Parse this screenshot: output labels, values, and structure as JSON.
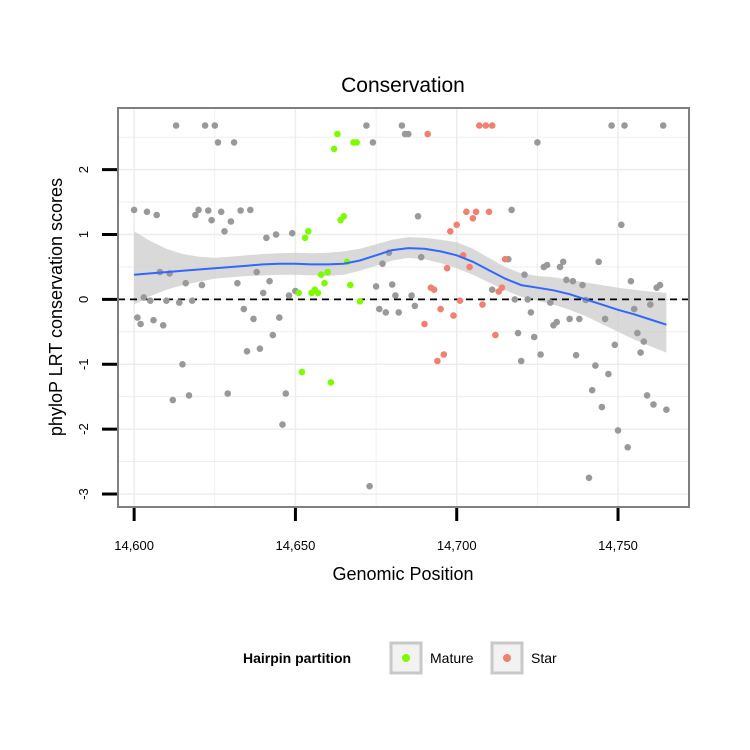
{
  "chart_data": {
    "type": "scatter",
    "title": "Conservation",
    "xlabel": "Genomic Position",
    "ylabel": "phyloP LRT conservation scores",
    "xlim": [
      14595,
      14772
    ],
    "ylim": [
      -3.2,
      2.95
    ],
    "x_ticks": [
      14600,
      14650,
      14700,
      14750
    ],
    "x_tick_labels": [
      "14,600",
      "14,650",
      "14,700",
      "14,750"
    ],
    "y_ticks": [
      -3,
      -2,
      -1,
      0,
      1,
      2
    ],
    "y_tick_labels": [
      "-3",
      "-2",
      "-1",
      "0",
      "1",
      "2"
    ],
    "grid": true,
    "reference_line": {
      "y": 0,
      "style": "dashed"
    },
    "legend": {
      "title": "Hairpin partition",
      "position": "bottom",
      "entries": [
        {
          "label": "Mature",
          "color": "#7cfc00"
        },
        {
          "label": "Star",
          "color": "#f08070"
        }
      ]
    },
    "colors": {
      "other": "#999999",
      "Mature": "#7cfc00",
      "Star": "#f08070",
      "smooth": "#3366ff",
      "band": "#cccccc"
    },
    "series": [
      {
        "name": "Other",
        "x": [
          14600,
          14601,
          14602,
          14603,
          14604,
          14605,
          14606,
          14607,
          14608,
          14609,
          14610,
          14611,
          14612,
          14613,
          14614,
          14615,
          14616,
          14617,
          14618,
          14619,
          14620,
          14621,
          14622,
          14623,
          14624,
          14625,
          14626,
          14627,
          14628,
          14629,
          14630,
          14631,
          14632,
          14633,
          14634,
          14635,
          14636,
          14637,
          14638,
          14639,
          14640,
          14641,
          14642,
          14643,
          14644,
          14645,
          14646,
          14647,
          14648,
          14649,
          14650,
          14672,
          14673,
          14674,
          14675,
          14676,
          14677,
          14678,
          14679,
          14680,
          14681,
          14682,
          14683,
          14684,
          14685,
          14686,
          14687,
          14688,
          14689,
          14711,
          14716,
          14717,
          14718,
          14719,
          14720,
          14721,
          14722,
          14723,
          14724,
          14725,
          14726,
          14727,
          14728,
          14729,
          14730,
          14731,
          14732,
          14733,
          14734,
          14735,
          14736,
          14737,
          14738,
          14739,
          14740,
          14741,
          14742,
          14743,
          14744,
          14745,
          14746,
          14747,
          14748,
          14749,
          14750,
          14751,
          14752,
          14753,
          14754,
          14755,
          14756,
          14757,
          14758,
          14759,
          14760,
          14761,
          14762,
          14763,
          14764,
          14765
        ],
        "y": [
          1.38,
          -0.28,
          -0.38,
          0.03,
          1.35,
          -0.02,
          -0.32,
          1.3,
          0.42,
          -0.4,
          -0.02,
          0.4,
          -1.55,
          2.68,
          -0.05,
          -1.0,
          0.25,
          -1.48,
          -0.02,
          1.3,
          1.38,
          0.22,
          2.68,
          1.37,
          1.22,
          2.68,
          2.42,
          1.35,
          1.05,
          -1.45,
          1.2,
          2.42,
          0.25,
          1.37,
          -0.15,
          -0.8,
          1.38,
          -0.3,
          0.42,
          -0.76,
          0.1,
          0.95,
          0.28,
          -0.55,
          1.0,
          -0.28,
          -1.93,
          -1.45,
          0.06,
          1.02,
          0.13,
          2.68,
          -2.88,
          2.42,
          0.2,
          -0.15,
          0.55,
          -0.2,
          0.72,
          0.23,
          0.06,
          -0.2,
          2.68,
          2.55,
          2.55,
          0.06,
          -0.1,
          1.28,
          0.65,
          0.15,
          0.62,
          1.38,
          0.0,
          -0.52,
          -0.95,
          0.38,
          0.0,
          -0.2,
          -0.58,
          2.42,
          -0.85,
          0.5,
          0.53,
          -0.05,
          -0.4,
          -0.35,
          0.5,
          0.58,
          0.3,
          -0.3,
          0.28,
          -0.86,
          -0.3,
          0.22,
          -0.01,
          -2.75,
          -1.4,
          -1.02,
          0.58,
          -1.66,
          -0.3,
          -1.15,
          2.68,
          -0.7,
          -2.02,
          1.15,
          2.68,
          -2.28,
          0.28,
          -0.15,
          -0.52,
          -0.82,
          -0.65,
          -1.48,
          -0.08,
          -1.62,
          0.18,
          0.22,
          2.68,
          -1.7
        ],
        "color": "#999999"
      },
      {
        "name": "Mature",
        "x": [
          14651,
          14652,
          14653,
          14654,
          14655,
          14656,
          14657,
          14658,
          14659,
          14660,
          14661,
          14662,
          14663,
          14664,
          14665,
          14666,
          14667,
          14668,
          14669,
          14670
        ],
        "y": [
          0.1,
          -1.12,
          0.95,
          1.05,
          0.1,
          0.15,
          0.1,
          0.38,
          0.25,
          0.42,
          -1.28,
          2.32,
          2.55,
          1.22,
          1.28,
          0.58,
          0.22,
          2.42,
          2.42,
          -0.03
        ],
        "color": "#7cfc00"
      },
      {
        "name": "Star",
        "x": [
          14690,
          14691,
          14692,
          14693,
          14694,
          14695,
          14696,
          14697,
          14698,
          14699,
          14700,
          14701,
          14702,
          14703,
          14704,
          14705,
          14706,
          14707,
          14708,
          14709,
          14710,
          14711,
          14712,
          14713,
          14714,
          14715
        ],
        "y": [
          -0.38,
          2.55,
          0.18,
          0.15,
          -0.95,
          -0.15,
          -0.85,
          0.48,
          1.05,
          -0.25,
          1.15,
          -0.02,
          0.68,
          1.35,
          0.5,
          1.25,
          1.35,
          2.68,
          -0.08,
          2.68,
          1.35,
          2.68,
          -0.55,
          0.12,
          0.18,
          0.62
        ],
        "color": "#f08070"
      }
    ],
    "smooth": {
      "x": [
        14600,
        14605,
        14610,
        14615,
        14620,
        14625,
        14630,
        14635,
        14640,
        14645,
        14650,
        14655,
        14660,
        14665,
        14670,
        14675,
        14680,
        14685,
        14690,
        14695,
        14700,
        14705,
        14710,
        14715,
        14720,
        14725,
        14730,
        14735,
        14740,
        14745,
        14750,
        14755,
        14760,
        14765
      ],
      "y": [
        0.38,
        0.4,
        0.42,
        0.44,
        0.46,
        0.48,
        0.5,
        0.52,
        0.54,
        0.55,
        0.55,
        0.54,
        0.54,
        0.55,
        0.6,
        0.68,
        0.76,
        0.79,
        0.78,
        0.74,
        0.68,
        0.58,
        0.45,
        0.32,
        0.22,
        0.18,
        0.14,
        0.08,
        0.0,
        -0.08,
        -0.16,
        -0.23,
        -0.31,
        -0.39
      ],
      "lower": [
        -0.08,
        0.05,
        0.15,
        0.22,
        0.27,
        0.32,
        0.34,
        0.36,
        0.37,
        0.38,
        0.38,
        0.37,
        0.36,
        0.38,
        0.44,
        0.52,
        0.6,
        0.64,
        0.62,
        0.56,
        0.48,
        0.38,
        0.26,
        0.14,
        0.04,
        -0.02,
        -0.08,
        -0.16,
        -0.26,
        -0.38,
        -0.5,
        -0.62,
        -0.72,
        -0.82
      ],
      "upper": [
        1.05,
        0.9,
        0.78,
        0.7,
        0.66,
        0.64,
        0.66,
        0.68,
        0.7,
        0.71,
        0.72,
        0.71,
        0.72,
        0.74,
        0.78,
        0.85,
        0.92,
        0.96,
        0.95,
        0.92,
        0.88,
        0.78,
        0.64,
        0.5,
        0.4,
        0.36,
        0.34,
        0.3,
        0.26,
        0.22,
        0.18,
        0.15,
        0.12,
        0.1
      ]
    }
  }
}
